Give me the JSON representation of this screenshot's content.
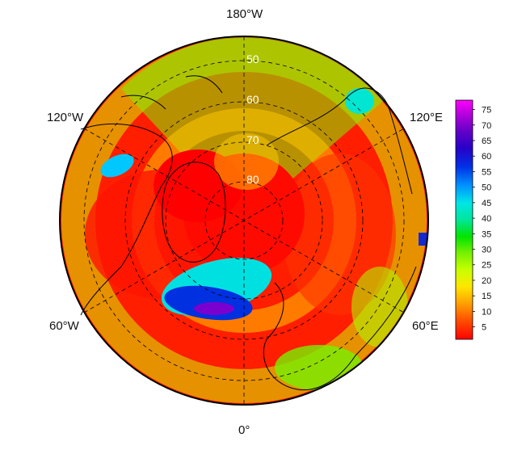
{
  "map": {
    "projection": "north-polar-stereographic",
    "longitude_labels": [
      "180°W",
      "120°W",
      "120°E",
      "60°W",
      "60°E",
      "0°"
    ],
    "latitude_labels": [
      "50",
      "60",
      "70",
      "80"
    ]
  },
  "colorbar": {
    "ticks": [
      "75",
      "70",
      "65",
      "60",
      "55",
      "50",
      "45",
      "40",
      "35",
      "30",
      "25",
      "20",
      "15",
      "10",
      "5"
    ],
    "min": 1,
    "max": 78,
    "colors": [
      "#ff0000",
      "#ff5000",
      "#ffa000",
      "#ffe600",
      "#c8ff00",
      "#78f000",
      "#00e400",
      "#00e69a",
      "#00e6e6",
      "#0096ff",
      "#0032e6",
      "#2800c8",
      "#6400c8",
      "#b400dc",
      "#ff00ff"
    ]
  }
}
